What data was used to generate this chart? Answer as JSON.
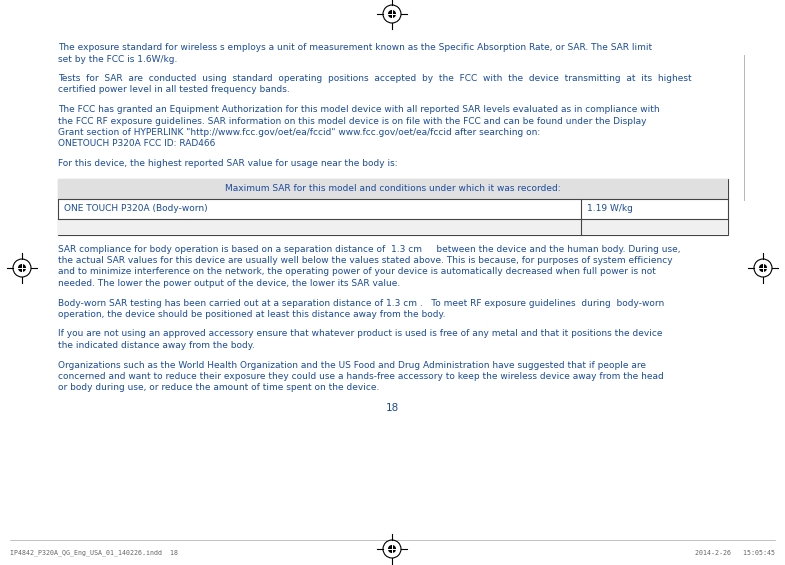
{
  "bg_color": "#ffffff",
  "text_color": "#1a4b9c",
  "footer_color": "#666666",
  "para1_l1": "The exposure standard for wireless s employs a unit of measurement known as the Specific Absorption Rate, or SAR. The SAR limit",
  "para1_l2": "set by the FCC is 1.6W/kg.",
  "para2_l1": "Tests  for  SAR  are  conducted  using  standard  operating  positions  accepted  by  the  FCC  with  the  device  transmitting  at  its  highest",
  "para2_l2": "certified power level in all tested frequency bands.",
  "para3_l1": "The FCC has granted an Equipment Authorization for this model device with all reported SAR levels evaluated as in compliance with",
  "para3_l2": "the FCC RF exposure guidelines. SAR information on this model device is on file with the FCC and can be found under the Display",
  "para3_l3": "Grant section of HYPERLINK \"http://www.fcc.gov/oet/ea/fccid\" www.fcc.gov/oet/ea/fccid after searching on:",
  "para3_l4": "ONETOUCH P320A FCC ID: RAD466",
  "para4": "For this device, the highest reported SAR value for usage near the body is:",
  "table_header": "Maximum SAR for this model and conditions under which it was recorded:",
  "table_col1": "ONE TOUCH P320A (Body-worn)",
  "table_col2": "1.19 W/kg",
  "para5_l1": "SAR compliance for body operation is based on a separation distance of  1.3 cm     between the device and the human body. During use,",
  "para5_l2": "the actual SAR values for this device are usually well below the values stated above. This is because, for purposes of system efficiency",
  "para5_l3": "and to minimize interference on the network, the operating power of your device is automatically decreased when full power is not",
  "para5_l4": "needed. The lower the power output of the device, the lower its SAR value.",
  "para6_l1": "Body-worn SAR testing has been carried out at a separation distance of 1.3 cm .   To meet RF exposure guidelines  during  body-worn",
  "para6_l2": "operation, the device should be positioned at least this distance away from the body.",
  "para7_l1": "If you are not using an approved accessory ensure that whatever product is used is free of any metal and that it positions the device",
  "para7_l2": "the indicated distance away from the body.",
  "para8_l1": "Organizations such as the World Health Organization and the US Food and Drug Administration have suggested that if people are",
  "para8_l2": "concerned and want to reduce their exposure they could use a hands-free accessory to keep the wireless device away from the head",
  "para8_l3": "or body during use, or reduce the amount of time spent on the device.",
  "page_number": "18",
  "footer_left": "IP4842_P320A_QG_Eng_USA_01_140226.indd  18",
  "footer_right": "2014-2-26   15:05:45"
}
